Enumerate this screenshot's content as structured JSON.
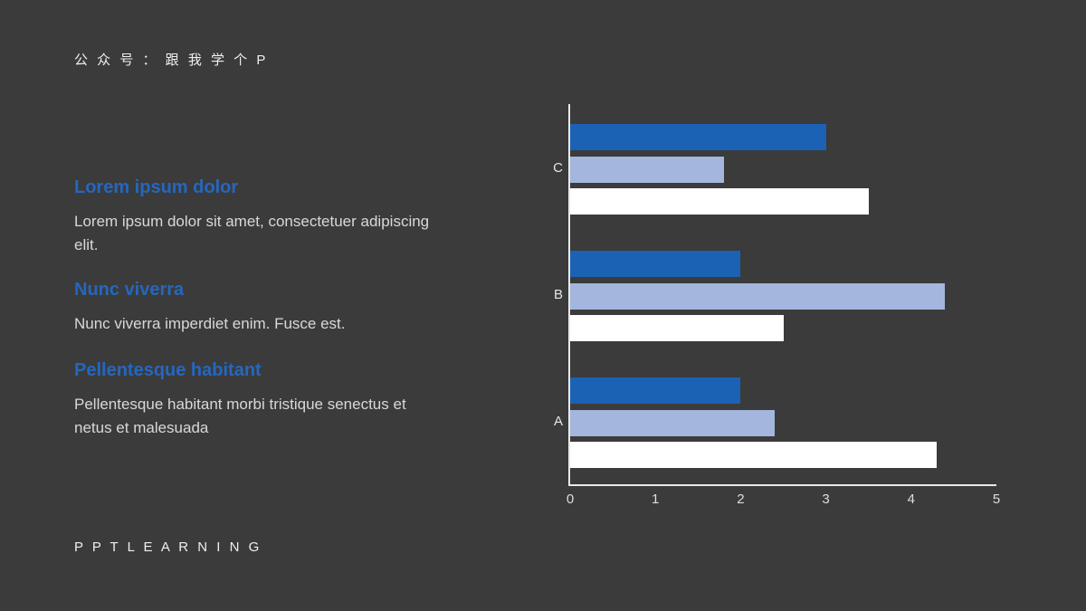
{
  "slide": {
    "background": "#3B3B3B",
    "accent_color": "#2567BE",
    "brand_top": "公 众 号 ：  跟 我 学 个 P",
    "footer": "P P T   L E A R N I N G",
    "sections": [
      {
        "heading": "Lorem ipsum dolor",
        "body": "Lorem ipsum dolor sit amet, consectetuer adipiscing elit."
      },
      {
        "heading": "Nunc viverra",
        "body": "Nunc viverra imperdiet enim. Fusce est."
      },
      {
        "heading": "Pellentesque habitant",
        "body": "Pellentesque habitant morbi tristique senectus et netus et malesuada"
      }
    ]
  },
  "chart_data": {
    "type": "bar",
    "orientation": "horizontal",
    "title": "",
    "categories_top_to_bottom": [
      "C",
      "B",
      "A"
    ],
    "series_top_to_bottom_per_category": [
      {
        "name": "dark-blue",
        "color": "#1B62B4",
        "values": [
          3.0,
          2.0,
          2.0
        ]
      },
      {
        "name": "light-blue",
        "color": "#A4B6DD",
        "values": [
          1.8,
          4.4,
          2.4
        ]
      },
      {
        "name": "white",
        "color": "#FFFFFF",
        "values": [
          3.5,
          2.5,
          4.3
        ]
      }
    ],
    "x_axis": {
      "min": 0,
      "max": 5,
      "ticks": [
        "0",
        "1",
        "2",
        "3",
        "4",
        "5"
      ]
    },
    "y_axis_labels": [
      "C",
      "B",
      "A"
    ],
    "legend": "none",
    "gridlines": false,
    "axis_color": "#E9E9E9",
    "label_color": "#E6E6E6"
  }
}
